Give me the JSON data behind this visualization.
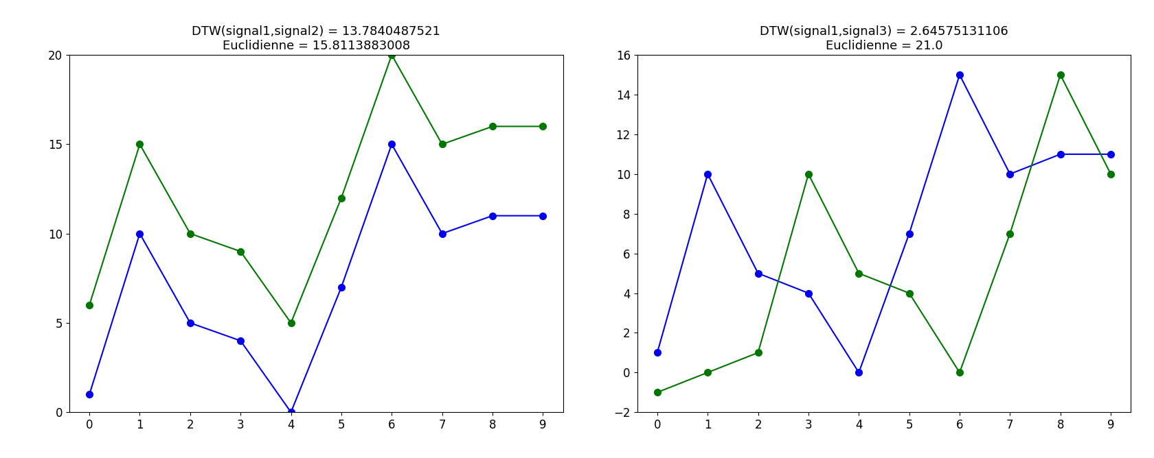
{
  "signal1": [
    1,
    10,
    5,
    4,
    0,
    7,
    15,
    10,
    11,
    11
  ],
  "signal2": [
    6,
    15,
    10,
    9,
    5,
    12,
    20,
    15,
    16,
    16
  ],
  "signal3": [
    -1,
    0,
    1,
    10,
    5,
    4,
    0,
    7,
    15,
    10
  ],
  "title1": "DTW(signal1,signal2) = 13.7840487521\nEuclidienne = 15.8113883008",
  "title2": "DTW(signal1,signal3) = 2.64575131106\nEuclidienne = 21.0",
  "blue_color": "#0000ee",
  "green_color": "#007700",
  "marker": "o",
  "linewidth": 1.5,
  "markersize": 7,
  "plot1_ylim": [
    0,
    20
  ],
  "plot1_yticks": [
    0,
    5,
    10,
    15,
    20
  ],
  "plot2_ylim": [
    -2,
    16
  ],
  "plot2_yticks": [
    -2,
    0,
    2,
    4,
    6,
    8,
    10,
    12,
    14,
    16
  ],
  "xlim_min": -0.4,
  "xlim_max": 9.4,
  "title_fontsize": 13,
  "tick_fontsize": 12,
  "background_color": "#ffffff"
}
